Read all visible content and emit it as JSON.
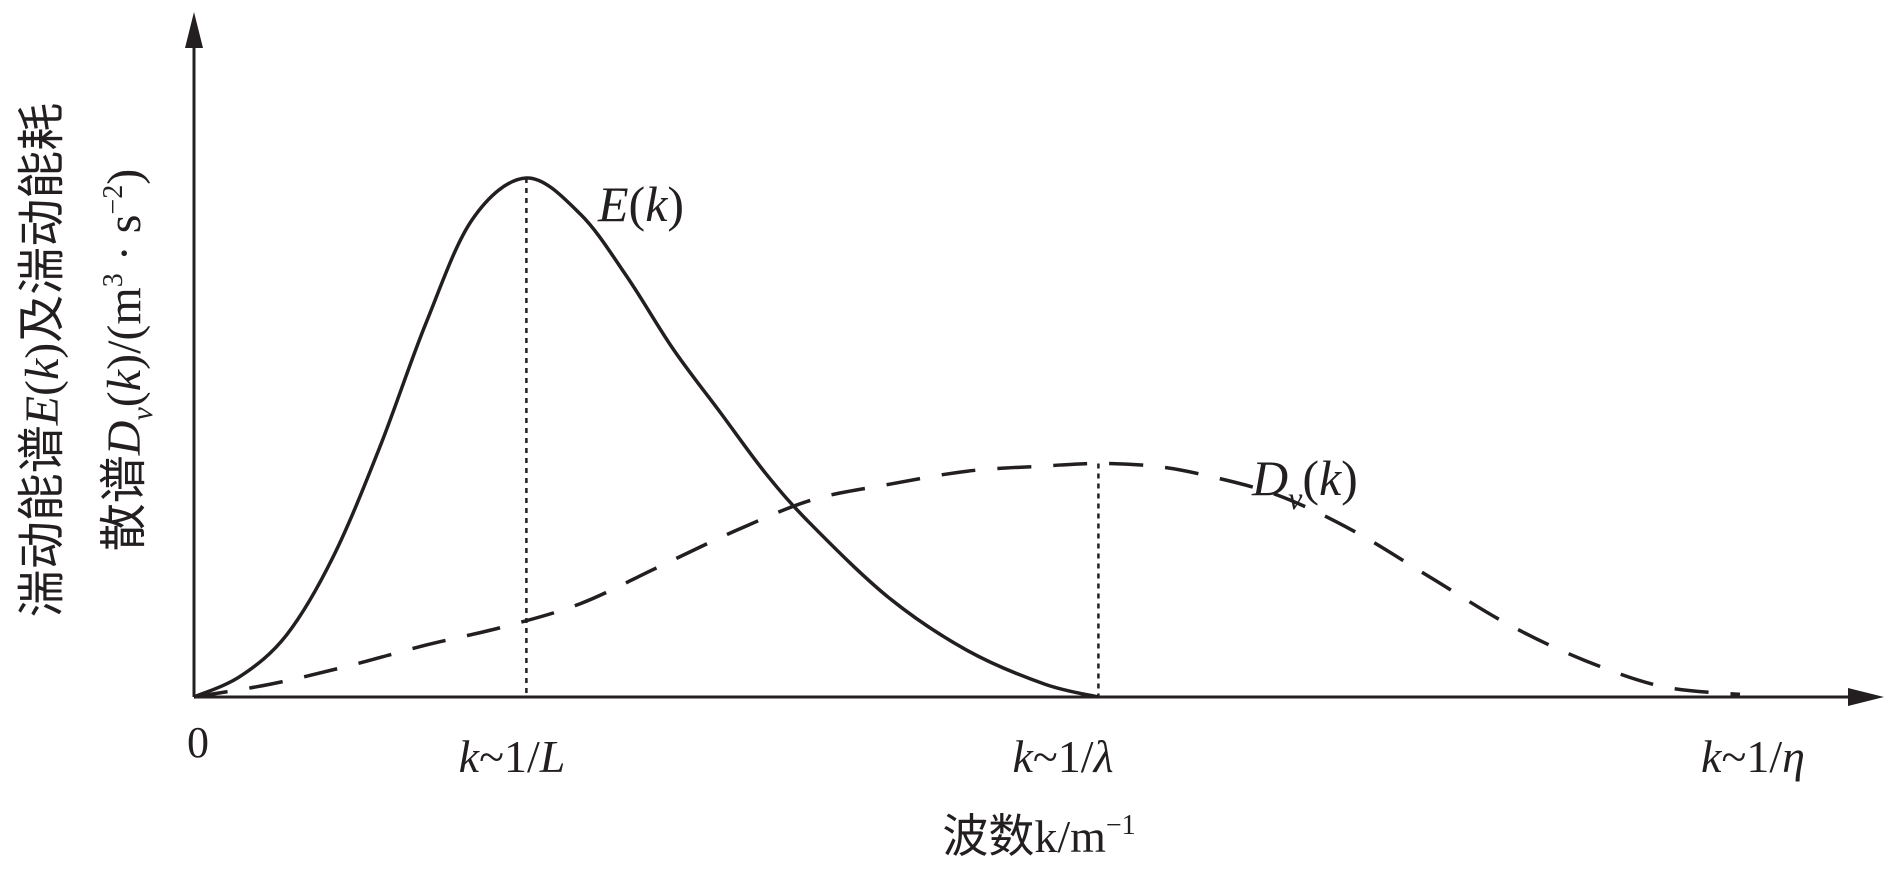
{
  "chart_data": {
    "type": "line",
    "ylabel_line1": "湍动能谱E(k)及湍动能耗",
    "ylabel_line2": "散谱D_v(k)/(m³·s⁻²)",
    "xlabel": "波数k/m⁻¹",
    "origin_label": "0",
    "x_ticks": [
      {
        "label": "k~1/L",
        "x": 0.215
      },
      {
        "label": "k~1/λ",
        "x": 0.585
      },
      {
        "label": "k~1/η",
        "x": 1.0
      }
    ],
    "xlim": [
      0,
      1.12
    ],
    "ylim": [
      0,
      1.05
    ],
    "grid": false,
    "series": [
      {
        "name": "E(k)",
        "line_style": "solid",
        "peak_x": 0.215,
        "x": [
          0,
          0.03,
          0.06,
          0.09,
          0.12,
          0.15,
          0.18,
          0.215,
          0.25,
          0.28,
          0.31,
          0.34,
          0.37,
          0.4,
          0.45,
          0.5,
          0.55,
          0.585
        ],
        "y": [
          0,
          0.04,
          0.12,
          0.27,
          0.48,
          0.72,
          0.92,
          1.0,
          0.93,
          0.81,
          0.67,
          0.55,
          0.43,
          0.33,
          0.19,
          0.09,
          0.025,
          0
        ]
      },
      {
        "name": "D_v(k)",
        "line_style": "dashed",
        "peak_x": 0.585,
        "x": [
          0,
          0.05,
          0.1,
          0.15,
          0.2,
          0.25,
          0.3,
          0.35,
          0.4,
          0.45,
          0.5,
          0.55,
          0.585,
          0.62,
          0.65,
          0.7,
          0.75,
          0.8,
          0.85,
          0.9,
          0.95,
          1.0
        ],
        "y": [
          0,
          0.025,
          0.06,
          0.1,
          0.135,
          0.18,
          0.25,
          0.32,
          0.38,
          0.41,
          0.435,
          0.445,
          0.45,
          0.445,
          0.43,
          0.39,
          0.32,
          0.23,
          0.14,
          0.07,
          0.02,
          0.005
        ]
      }
    ],
    "colors": {
      "ink": "#231f20",
      "background": "#ffffff"
    }
  }
}
